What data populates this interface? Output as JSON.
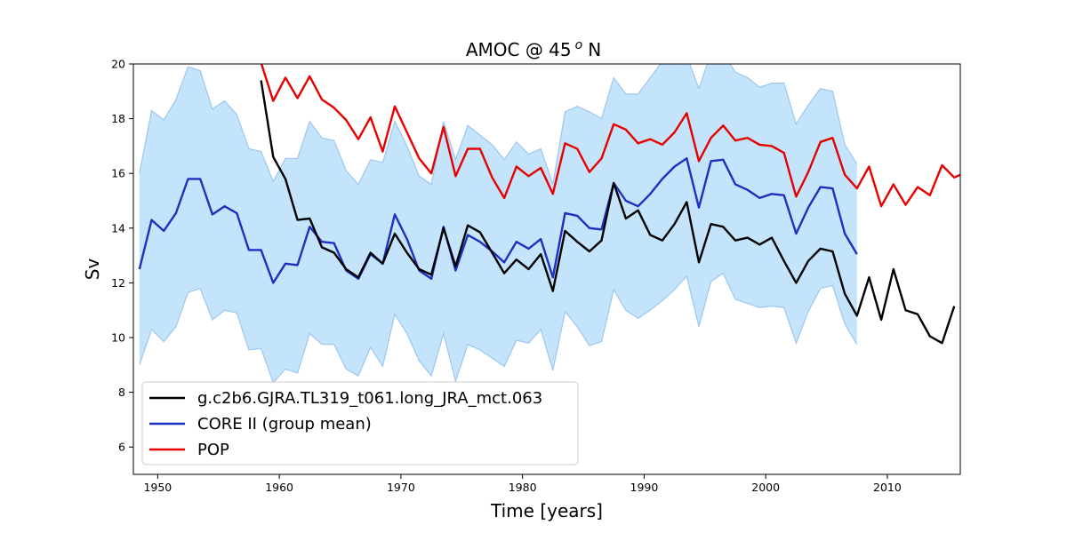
{
  "chart_data": {
    "type": "line",
    "title": "AMOC @ 45",
    "title_sup": "o",
    "title_suffix": "N",
    "xlabel": "Time [years]",
    "ylabel": "Sv",
    "xlim": [
      1948,
      2016
    ],
    "ylim": [
      5,
      20
    ],
    "xticks": [
      1950,
      1960,
      1970,
      1980,
      1990,
      2000,
      2010
    ],
    "yticks": [
      6,
      8,
      10,
      12,
      14,
      16,
      18,
      20
    ],
    "legend_position": "lower-left",
    "colors": {
      "band_fill": "#c3e4fb",
      "band_edge": "#9ec6ef",
      "black": "#000000",
      "blue": "#1f2fbf",
      "red": "#e60000"
    },
    "series": [
      {
        "name": "g.c2b6.GJRA.TL319_t061.long_JRA_mct.063",
        "color": "#000000",
        "x": [
          1958.5,
          1959.5,
          1960.5,
          1961.5,
          1962.5,
          1963.5,
          1964.5,
          1965.5,
          1966.5,
          1967.5,
          1968.5,
          1969.5,
          1970.5,
          1971.5,
          1972.5,
          1973.5,
          1974.5,
          1975.5,
          1976.5,
          1977.5,
          1978.5,
          1979.5,
          1980.5,
          1981.5,
          1982.5,
          1983.5,
          1984.5,
          1985.5,
          1986.5,
          1987.5,
          1988.5,
          1989.5,
          1990.5,
          1991.5,
          1992.5,
          1993.5,
          1994.5,
          1995.5,
          1996.5,
          1997.5,
          1998.5,
          1999.5,
          2000.5,
          2001.5,
          2002.5,
          2003.5,
          2004.5,
          2005.5,
          2006.5,
          2007.5,
          2008.5,
          2009.5,
          2010.5,
          2011.5,
          2012.5,
          2013.5,
          2014.5,
          2015.5
        ],
        "values": [
          19.4,
          16.6,
          15.8,
          14.3,
          14.35,
          13.3,
          13.1,
          12.5,
          12.2,
          13.1,
          12.7,
          13.8,
          13.1,
          12.5,
          12.3,
          14.0,
          12.6,
          14.1,
          13.85,
          13.1,
          12.35,
          12.85,
          12.5,
          13.05,
          11.7,
          13.9,
          13.5,
          13.15,
          13.55,
          15.65,
          14.35,
          14.65,
          13.75,
          13.55,
          14.15,
          14.95,
          12.75,
          14.15,
          14.05,
          13.55,
          13.65,
          13.4,
          13.65,
          12.8,
          12.0,
          12.8,
          13.25,
          13.15,
          11.6,
          10.8,
          12.2,
          10.65,
          12.5,
          11.0,
          10.85,
          10.05,
          9.8,
          11.15
        ]
      },
      {
        "name": "CORE II (group mean)",
        "color": "#1f2fbf",
        "x": [
          1948.5,
          1949.5,
          1950.5,
          1951.5,
          1952.5,
          1953.5,
          1954.5,
          1955.5,
          1956.5,
          1957.5,
          1958.5,
          1959.5,
          1960.5,
          1961.5,
          1962.5,
          1963.5,
          1964.5,
          1965.5,
          1966.5,
          1967.5,
          1968.5,
          1969.5,
          1970.5,
          1971.5,
          1972.5,
          1973.5,
          1974.5,
          1975.5,
          1976.5,
          1977.5,
          1978.5,
          1979.5,
          1980.5,
          1981.5,
          1982.5,
          1983.5,
          1984.5,
          1985.5,
          1986.5,
          1987.5,
          1988.5,
          1989.5,
          1990.5,
          1991.5,
          1992.5,
          1993.5,
          1994.5,
          1995.5,
          1996.5,
          1997.5,
          1998.5,
          1999.5,
          2000.5,
          2001.5,
          2002.5,
          2003.5,
          2004.5,
          2005.5,
          2006.5,
          2007.5
        ],
        "values": [
          12.5,
          14.3,
          13.9,
          14.55,
          15.8,
          15.8,
          14.5,
          14.8,
          14.55,
          13.2,
          13.2,
          12.0,
          12.7,
          12.65,
          14.05,
          13.5,
          13.45,
          12.45,
          12.15,
          13.05,
          12.7,
          14.5,
          13.6,
          12.45,
          12.15,
          14.05,
          12.45,
          13.75,
          13.5,
          13.15,
          12.75,
          13.5,
          13.25,
          13.6,
          12.2,
          14.55,
          14.45,
          14.0,
          13.95,
          15.65,
          15.0,
          14.8,
          15.25,
          15.8,
          16.25,
          16.55,
          14.75,
          16.45,
          16.5,
          15.6,
          15.4,
          15.1,
          15.25,
          15.2,
          13.8,
          14.75,
          15.5,
          15.45,
          13.8,
          13.05
        ]
      },
      {
        "name": "POP",
        "color": "#e60000",
        "x": [
          1958.5,
          1959.5,
          1960.5,
          1961.5,
          1962.5,
          1963.5,
          1964.5,
          1965.5,
          1966.5,
          1967.5,
          1968.5,
          1969.5,
          1970.5,
          1971.5,
          1972.5,
          1973.5,
          1974.5,
          1975.5,
          1976.5,
          1977.5,
          1978.5,
          1979.5,
          1980.5,
          1981.5,
          1982.5,
          1983.5,
          1984.5,
          1985.5,
          1986.5,
          1987.5,
          1988.5,
          1989.5,
          1990.5,
          1991.5,
          1992.5,
          1993.5,
          1994.5,
          1995.5,
          1996.5,
          1997.5,
          1998.5,
          1999.5,
          2000.5,
          2001.5,
          2002.5,
          2003.5,
          2004.5,
          2005.5,
          2006.5,
          2007.5,
          2008.5,
          2009.5,
          2010.5,
          2011.5,
          2012.5,
          2013.5,
          2014.5,
          2015.5,
          2016.0
        ],
        "values": [
          20.05,
          18.65,
          19.5,
          18.75,
          19.55,
          18.7,
          18.4,
          17.95,
          17.25,
          18.05,
          16.8,
          18.45,
          17.5,
          16.55,
          16.0,
          17.7,
          15.9,
          16.9,
          16.9,
          15.85,
          15.1,
          16.25,
          15.9,
          16.2,
          15.25,
          17.1,
          16.9,
          16.05,
          16.55,
          17.8,
          17.6,
          17.1,
          17.25,
          17.05,
          17.5,
          18.2,
          16.45,
          17.3,
          17.75,
          17.2,
          17.3,
          17.05,
          17.0,
          16.75,
          15.15,
          16.05,
          17.15,
          17.3,
          15.95,
          15.45,
          16.25,
          14.8,
          15.6,
          14.85,
          15.5,
          15.2,
          16.3,
          15.85,
          15.95
        ]
      }
    ],
    "band": {
      "name": "CORE II spread",
      "x": [
        1948.5,
        1949.5,
        1950.5,
        1951.5,
        1952.5,
        1953.5,
        1954.5,
        1955.5,
        1956.5,
        1957.5,
        1958.5,
        1959.5,
        1960.5,
        1961.5,
        1962.5,
        1963.5,
        1964.5,
        1965.5,
        1966.5,
        1967.5,
        1968.5,
        1969.5,
        1970.5,
        1971.5,
        1972.5,
        1973.5,
        1974.5,
        1975.5,
        1976.5,
        1977.5,
        1978.5,
        1979.5,
        1980.5,
        1981.5,
        1982.5,
        1983.5,
        1984.5,
        1985.5,
        1986.5,
        1987.5,
        1988.5,
        1989.5,
        1990.5,
        1991.5,
        1992.5,
        1993.5,
        1994.5,
        1995.5,
        1996.5,
        1997.5,
        1998.5,
        1999.5,
        2000.5,
        2001.5,
        2002.5,
        2003.5,
        2004.5,
        2005.5,
        2006.5,
        2007.5
      ],
      "upper": [
        16.0,
        18.3,
        17.95,
        18.7,
        19.9,
        19.75,
        18.35,
        18.65,
        18.15,
        16.9,
        16.8,
        15.7,
        16.55,
        16.55,
        17.9,
        17.3,
        17.2,
        16.1,
        15.6,
        16.5,
        16.4,
        17.9,
        17.0,
        15.9,
        15.6,
        17.9,
        16.5,
        17.75,
        17.4,
        17.05,
        16.5,
        17.15,
        16.7,
        16.9,
        15.6,
        18.25,
        18.45,
        18.25,
        18.0,
        19.5,
        18.9,
        18.9,
        19.5,
        20.1,
        20.2,
        20.3,
        19.1,
        20.4,
        20.4,
        19.7,
        19.5,
        19.15,
        19.3,
        19.3,
        17.8,
        18.5,
        19.1,
        19.0,
        17.05,
        16.35
      ],
      "lower": [
        9.0,
        10.3,
        9.85,
        10.4,
        11.65,
        11.8,
        10.65,
        11.0,
        10.9,
        9.55,
        9.6,
        8.35,
        8.85,
        8.7,
        10.15,
        9.75,
        9.75,
        8.85,
        8.6,
        9.65,
        8.95,
        10.85,
        10.15,
        9.15,
        8.6,
        10.15,
        8.4,
        9.75,
        9.55,
        9.25,
        8.95,
        9.9,
        9.8,
        10.3,
        8.8,
        10.95,
        10.4,
        9.7,
        9.85,
        11.75,
        11.0,
        10.7,
        11.0,
        11.35,
        11.75,
        12.25,
        10.4,
        12.05,
        12.35,
        11.4,
        11.25,
        11.1,
        11.15,
        11.1,
        9.8,
        10.95,
        11.8,
        11.9,
        10.5,
        9.75
      ]
    }
  }
}
